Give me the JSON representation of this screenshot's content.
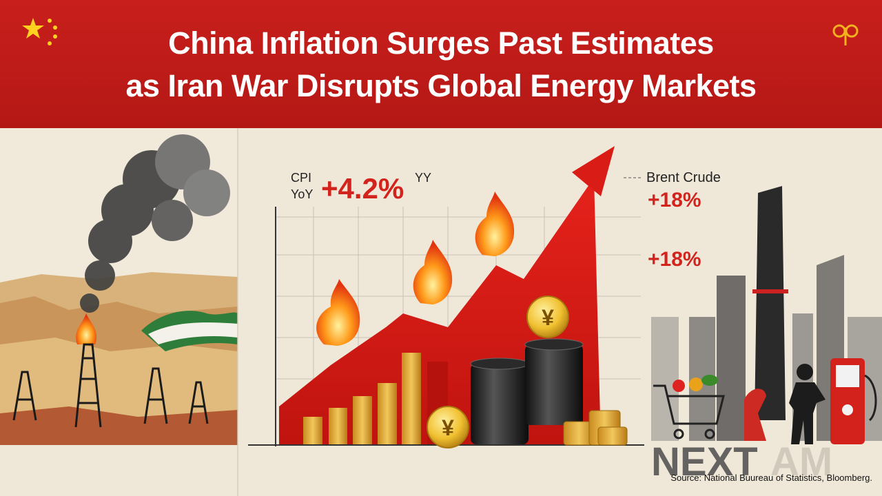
{
  "header": {
    "title_lines": [
      "China Inflation Surges Past Estimates",
      "as Iran War Disrupts Global Energy Markets"
    ]
  },
  "cpi": {
    "label_lines": [
      "CPI",
      "YoY"
    ],
    "value": "+4.2%",
    "suffix": "YY"
  },
  "brent": {
    "label": "Brent Crude",
    "value": "+18%",
    "second_value": "+18%"
  },
  "coins": [
    "¥",
    "¥"
  ],
  "logo": {
    "main": "NEXT",
    "faded": "AM"
  },
  "source": "Source: National Buureau of Statistics, Bloomberg."
}
